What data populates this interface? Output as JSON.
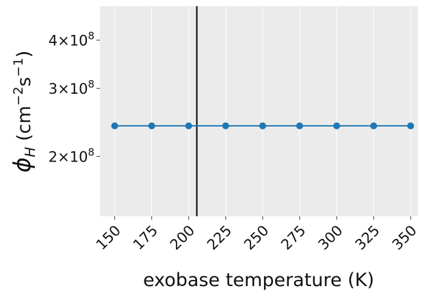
{
  "chart_data": {
    "type": "line",
    "title": "",
    "xlabel": "exobase temperature (K)",
    "ylabel": {
      "symbol": "ϕ",
      "subscript": "H",
      "units_open": " (cm",
      "exp1": "−2",
      "units_mid": "s",
      "exp2": "−1",
      "units_close": ")"
    },
    "yscale": "log",
    "xlim": [
      140,
      355
    ],
    "ylim": [
      140000000,
      490000000
    ],
    "xticks": [
      150,
      175,
      200,
      225,
      250,
      275,
      300,
      325,
      350
    ],
    "yticks": [
      {
        "value": 200000000,
        "mantissa": "2",
        "times": "×10",
        "exponent": "8"
      },
      {
        "value": 300000000,
        "mantissa": "3",
        "times": "×10",
        "exponent": "8"
      },
      {
        "value": 400000000,
        "mantissa": "4",
        "times": "×10",
        "exponent": "8"
      }
    ],
    "vline": {
      "x": 205.5,
      "color": "#000000"
    },
    "grid": true,
    "colors": {
      "background": "#ebebeb",
      "grid": "#ffffff",
      "series": "#1f77b4"
    },
    "series": [
      {
        "x": [
          150,
          175,
          200,
          225,
          250,
          275,
          300,
          325,
          350
        ],
        "values": [
          240000000,
          240000000,
          240000000,
          240000000,
          240000000,
          240000000,
          240000000,
          240000000,
          240000000
        ]
      }
    ]
  }
}
